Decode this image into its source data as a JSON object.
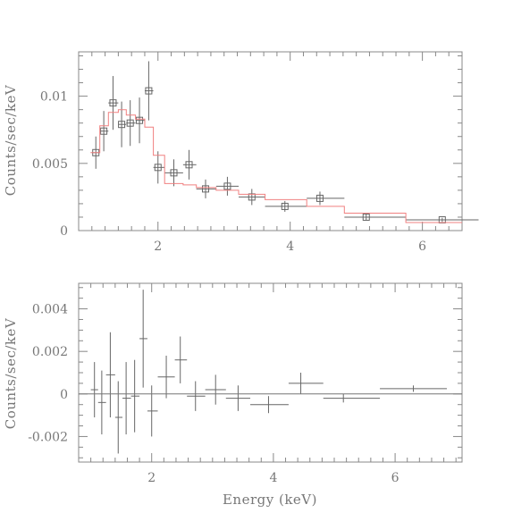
{
  "chart_data": [
    {
      "type": "scatter",
      "panel": "spectrum",
      "title": "",
      "xlabel": "",
      "ylabel": "Counts/sec/keV",
      "xlim": [
        0.8,
        6.6
      ],
      "ylim": [
        0,
        0.0133
      ],
      "xticks": [
        2,
        4,
        6
      ],
      "xtick_labels": [
        "2",
        "4",
        "6"
      ],
      "yticks": [
        0,
        0.005,
        0.01
      ],
      "ytick_labels": [
        "0",
        "0.005",
        "0.01"
      ],
      "series": [
        {
          "kind": "data",
          "points": [
            {
              "x": 1.06,
              "xlo": 1.0,
              "xhi": 1.12,
              "y": 0.0058,
              "yerr": 0.0012
            },
            {
              "x": 1.18,
              "xlo": 1.12,
              "xhi": 1.25,
              "y": 0.0074,
              "yerr": 0.0015
            },
            {
              "x": 1.32,
              "xlo": 1.25,
              "xhi": 1.4,
              "y": 0.0095,
              "yerr": 0.002
            },
            {
              "x": 1.45,
              "xlo": 1.4,
              "xhi": 1.52,
              "y": 0.0079,
              "yerr": 0.0017
            },
            {
              "x": 1.58,
              "xlo": 1.52,
              "xhi": 1.66,
              "y": 0.008,
              "yerr": 0.0017
            },
            {
              "x": 1.72,
              "xlo": 1.66,
              "xhi": 1.8,
              "y": 0.0082,
              "yerr": 0.0017
            },
            {
              "x": 1.86,
              "xlo": 1.8,
              "xhi": 1.93,
              "y": 0.0104,
              "yerr": 0.0022
            },
            {
              "x": 2.0,
              "xlo": 1.93,
              "xhi": 2.1,
              "y": 0.0047,
              "yerr": 0.0012
            },
            {
              "x": 2.24,
              "xlo": 2.1,
              "xhi": 2.38,
              "y": 0.0043,
              "yerr": 0.001
            },
            {
              "x": 2.47,
              "xlo": 2.38,
              "xhi": 2.58,
              "y": 0.0049,
              "yerr": 0.0011
            },
            {
              "x": 2.72,
              "xlo": 2.58,
              "xhi": 2.88,
              "y": 0.0031,
              "yerr": 0.0007
            },
            {
              "x": 3.05,
              "xlo": 2.88,
              "xhi": 3.22,
              "y": 0.0033,
              "yerr": 0.0007
            },
            {
              "x": 3.42,
              "xlo": 3.22,
              "xhi": 3.62,
              "y": 0.0025,
              "yerr": 0.0006
            },
            {
              "x": 3.92,
              "xlo": 3.62,
              "xhi": 4.25,
              "y": 0.0018,
              "yerr": 0.0004
            },
            {
              "x": 4.45,
              "xlo": 4.25,
              "xhi": 4.82,
              "y": 0.0024,
              "yerr": 0.0005
            },
            {
              "x": 5.15,
              "xlo": 4.82,
              "xhi": 5.75,
              "y": 0.001,
              "yerr": 0.0002
            },
            {
              "x": 6.3,
              "xlo": 5.75,
              "xhi": 6.85,
              "y": 0.0008,
              "yerr": 0.00015
            }
          ]
        },
        {
          "kind": "model",
          "steps": [
            {
              "x0": 0.98,
              "x1": 1.12,
              "y": 0.0058
            },
            {
              "x0": 1.12,
              "x1": 1.25,
              "y": 0.0078
            },
            {
              "x0": 1.25,
              "x1": 1.4,
              "y": 0.0088
            },
            {
              "x0": 1.4,
              "x1": 1.52,
              "y": 0.009
            },
            {
              "x0": 1.52,
              "x1": 1.66,
              "y": 0.0086
            },
            {
              "x0": 1.66,
              "x1": 1.8,
              "y": 0.0083
            },
            {
              "x0": 1.8,
              "x1": 1.93,
              "y": 0.0077
            },
            {
              "x0": 1.93,
              "x1": 2.1,
              "y": 0.0056
            },
            {
              "x0": 2.1,
              "x1": 2.38,
              "y": 0.0035
            },
            {
              "x0": 2.38,
              "x1": 2.58,
              "y": 0.0034
            },
            {
              "x0": 2.58,
              "x1": 2.88,
              "y": 0.0032
            },
            {
              "x0": 2.88,
              "x1": 3.22,
              "y": 0.003
            },
            {
              "x0": 3.22,
              "x1": 3.62,
              "y": 0.0027
            },
            {
              "x0": 3.62,
              "x1": 4.25,
              "y": 0.0023
            },
            {
              "x0": 4.25,
              "x1": 4.82,
              "y": 0.0018
            },
            {
              "x0": 4.82,
              "x1": 5.75,
              "y": 0.0013
            },
            {
              "x0": 5.75,
              "x1": 6.6,
              "y": 0.0006
            }
          ]
        }
      ]
    },
    {
      "type": "scatter",
      "panel": "residuals",
      "title": "",
      "xlabel": "Energy (keV)",
      "ylabel": "Counts/sec/keV",
      "xlim": [
        0.8,
        7.1
      ],
      "ylim": [
        -0.0032,
        0.0052
      ],
      "xticks": [
        2,
        4,
        6
      ],
      "xtick_labels": [
        "2",
        "4",
        "6"
      ],
      "yticks": [
        -0.002,
        0,
        0.002,
        0.004
      ],
      "ytick_labels": [
        "-0.002",
        "0",
        "0.002",
        "0.004"
      ],
      "series": [
        {
          "kind": "residuals",
          "points": [
            {
              "x": 1.06,
              "xlo": 1.0,
              "xhi": 1.12,
              "y": 0.0002,
              "yerr": 0.0013
            },
            {
              "x": 1.18,
              "xlo": 1.12,
              "xhi": 1.25,
              "y": -0.0004,
              "yerr": 0.0015
            },
            {
              "x": 1.32,
              "xlo": 1.25,
              "xhi": 1.4,
              "y": 0.0009,
              "yerr": 0.002
            },
            {
              "x": 1.45,
              "xlo": 1.4,
              "xhi": 1.52,
              "y": -0.0011,
              "yerr": 0.0017
            },
            {
              "x": 1.58,
              "xlo": 1.52,
              "xhi": 1.66,
              "y": -0.0002,
              "yerr": 0.0017
            },
            {
              "x": 1.72,
              "xlo": 1.66,
              "xhi": 1.8,
              "y": -0.0001,
              "yerr": 0.0017
            },
            {
              "x": 1.86,
              "xlo": 1.8,
              "xhi": 1.93,
              "y": 0.0026,
              "yerr": 0.0023
            },
            {
              "x": 2.0,
              "xlo": 1.93,
              "xhi": 2.1,
              "y": -0.0008,
              "yerr": 0.0012
            },
            {
              "x": 2.24,
              "xlo": 2.1,
              "xhi": 2.38,
              "y": 0.0008,
              "yerr": 0.001
            },
            {
              "x": 2.47,
              "xlo": 2.38,
              "xhi": 2.58,
              "y": 0.0016,
              "yerr": 0.0011
            },
            {
              "x": 2.72,
              "xlo": 2.58,
              "xhi": 2.88,
              "y": -0.0001,
              "yerr": 0.0007
            },
            {
              "x": 3.05,
              "xlo": 2.88,
              "xhi": 3.22,
              "y": 0.0002,
              "yerr": 0.0007
            },
            {
              "x": 3.42,
              "xlo": 3.22,
              "xhi": 3.62,
              "y": -0.0002,
              "yerr": 0.0006
            },
            {
              "x": 3.92,
              "xlo": 3.62,
              "xhi": 4.25,
              "y": -0.0005,
              "yerr": 0.0004
            },
            {
              "x": 4.45,
              "xlo": 4.25,
              "xhi": 4.82,
              "y": 0.0005,
              "yerr": 0.0005
            },
            {
              "x": 5.15,
              "xlo": 4.82,
              "xhi": 5.75,
              "y": -0.0002,
              "yerr": 0.0002
            },
            {
              "x": 6.3,
              "xlo": 5.75,
              "xhi": 6.85,
              "y": 0.00025,
              "yerr": 0.00015
            }
          ]
        }
      ]
    }
  ]
}
